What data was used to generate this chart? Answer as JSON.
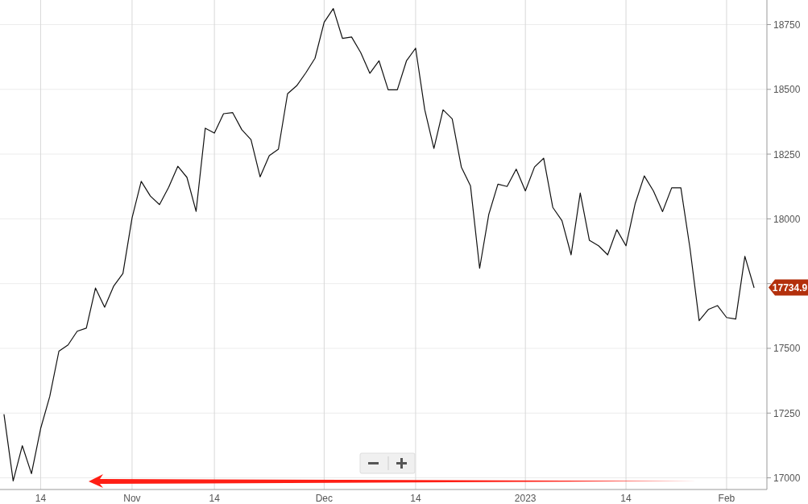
{
  "chart_data": {
    "type": "line",
    "categories": [
      null,
      null,
      null,
      null,
      "14",
      null,
      null,
      null,
      null,
      null,
      null,
      null,
      null,
      null,
      "Nov",
      null,
      null,
      null,
      null,
      null,
      null,
      null,
      null,
      "14",
      null,
      null,
      null,
      null,
      null,
      null,
      null,
      null,
      null,
      null,
      null,
      "Dec",
      null,
      null,
      null,
      null,
      null,
      null,
      null,
      null,
      null,
      "14",
      null,
      null,
      null,
      null,
      null,
      null,
      null,
      null,
      null,
      null,
      null,
      "2023",
      null,
      null,
      null,
      null,
      null,
      null,
      null,
      null,
      null,
      null,
      "14",
      null,
      null,
      null,
      null,
      null,
      null,
      null,
      null,
      null,
      null,
      "Feb",
      null,
      null,
      null
    ],
    "series": [
      {
        "color": "#111111",
        "values": [
          17244,
          16988,
          17124,
          17016,
          17190,
          17314,
          17489,
          17513,
          17566,
          17578,
          17733,
          17659,
          17741,
          17789,
          18004,
          18145,
          18088,
          18055,
          18122,
          18203,
          18160,
          18029,
          18350,
          18331,
          18406,
          18410,
          18344,
          18306,
          18162,
          18244,
          18269,
          18483,
          18514,
          18564,
          18620,
          18759,
          18812,
          18697,
          18702,
          18642,
          18562,
          18610,
          18498,
          18498,
          18610,
          18659,
          18421,
          18272,
          18421,
          18386,
          18200,
          18127,
          17809,
          18017,
          18134,
          18125,
          18192,
          18108,
          18200,
          18234,
          18044,
          17993,
          17861,
          18100,
          17917,
          17896,
          17861,
          17958,
          17896,
          18058,
          18166,
          18108,
          18028,
          18120,
          18120,
          17886,
          17607,
          17650,
          17665,
          17619,
          17613,
          17855,
          17734.9
        ]
      }
    ],
    "ylim": [
      16955,
      18845
    ],
    "yticks": [
      17000,
      17250,
      17500,
      {
        "value": 17750,
        "label": null
      },
      18000,
      18250,
      18500,
      18750
    ],
    "grid": true,
    "annotations": [
      "17734.9"
    ]
  }
}
